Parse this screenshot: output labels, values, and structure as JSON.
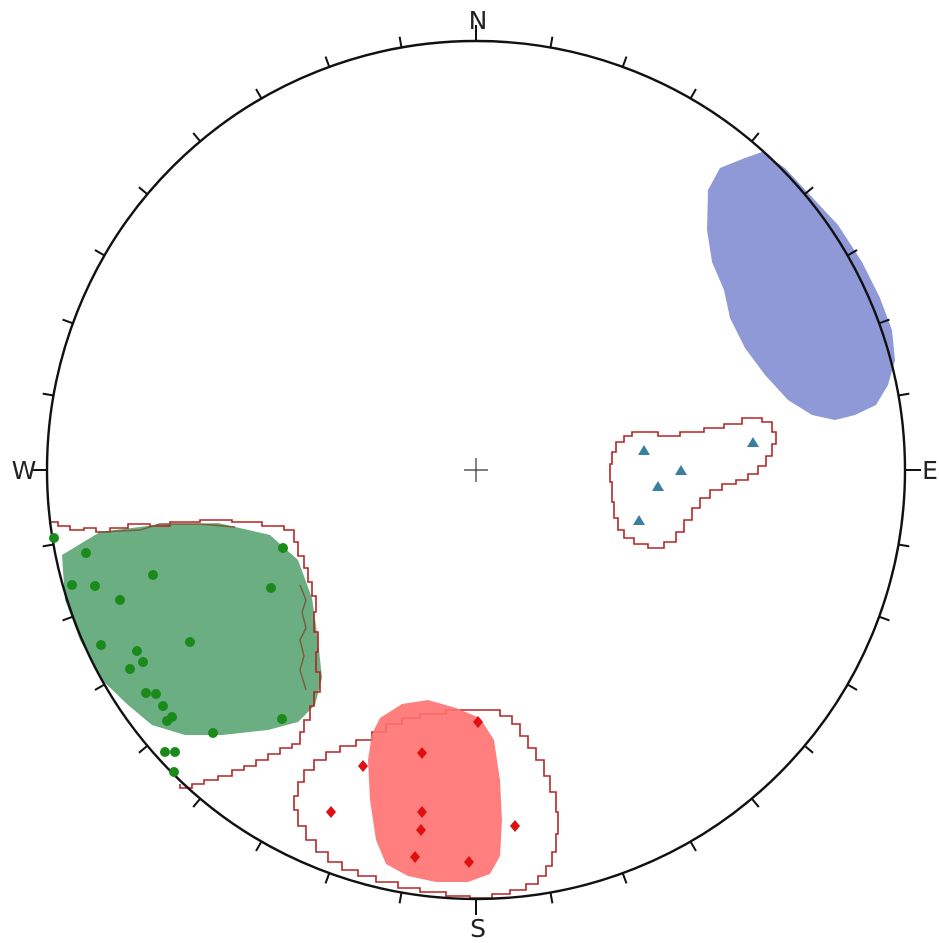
{
  "diagram": {
    "type": "stereonet",
    "directions": {
      "north": "N",
      "east": "E",
      "south": "S",
      "west": "W"
    },
    "tick_interval_deg": 10,
    "colors": {
      "net_outline": "#111111",
      "contour_outline": "#b22222",
      "cluster_blue": "#8f99d8",
      "cluster_green": "#6aae82",
      "cluster_red": "#ff7070",
      "points_green": "#1a8a1a",
      "points_red": "#e01010",
      "points_teal": "#3a7fa0"
    },
    "clusters": [
      {
        "id": "blue",
        "fill": "cluster_blue",
        "has_points": false
      },
      {
        "id": "green",
        "fill": "cluster_green",
        "marker": "circle"
      },
      {
        "id": "red",
        "fill": "cluster_red",
        "marker": "diamond"
      },
      {
        "id": "teal",
        "fill": "none",
        "marker": "triangle"
      }
    ]
  }
}
